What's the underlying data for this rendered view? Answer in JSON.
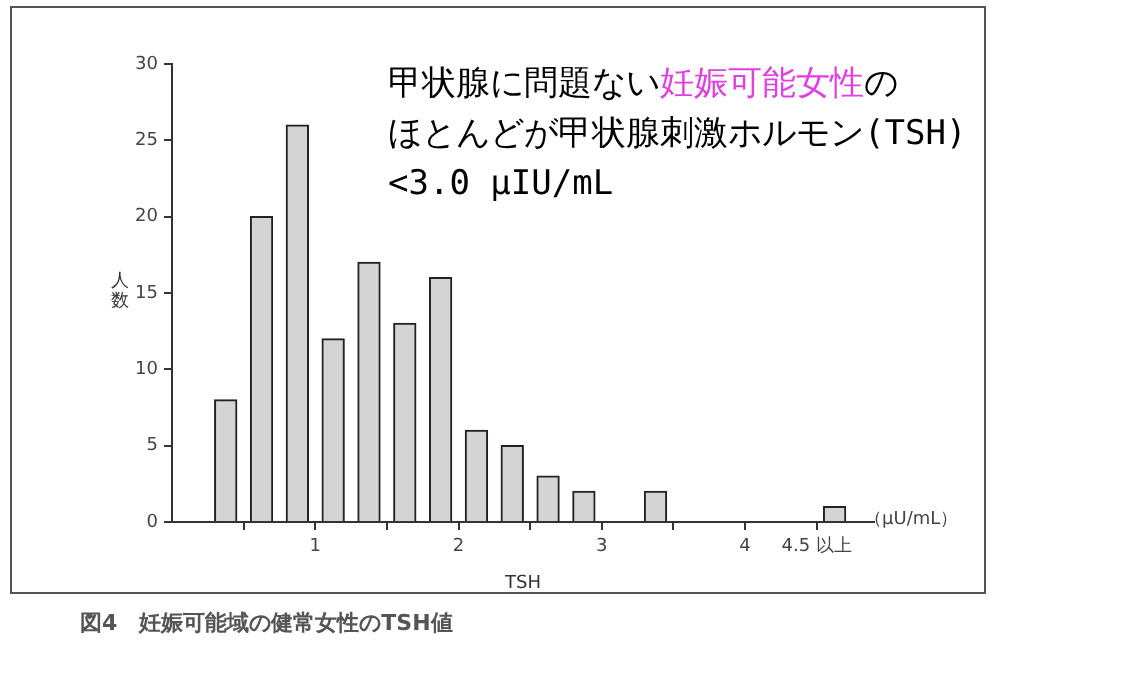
{
  "chart_data": {
    "type": "bar",
    "title": "図4　妊娠可能域の健常女性のTSH値",
    "xlabel": "TSH",
    "ylabel": "人数",
    "x": [
      0.375,
      0.625,
      0.875,
      1.125,
      1.375,
      1.625,
      1.875,
      2.125,
      2.375,
      2.625,
      2.875,
      3.375,
      4.625
    ],
    "values": [
      8,
      20,
      26,
      12,
      17,
      13,
      16,
      6,
      5,
      3,
      2,
      2,
      1
    ],
    "color": "#d4d4d4",
    "xlim": [
      0,
      4.9
    ],
    "xticks": [
      {
        "value": 0.5,
        "label": null
      },
      1,
      {
        "value": 1.5,
        "label": null
      },
      2,
      {
        "value": 2.5,
        "label": null
      },
      3,
      {
        "value": 3.5,
        "label": null
      },
      4,
      {
        "value": 4.5,
        "label": "4.5 以上"
      }
    ],
    "ylim": [
      0,
      30
    ],
    "yticks": [
      0,
      5,
      10,
      15,
      20,
      25,
      30
    ],
    "grid": false,
    "legend": false,
    "annotations": [
      "甲状腺に問題ない",
      "妊娠可能女性",
      "の",
      "ほとんどが甲状腺刺激ホルモン(TSH)",
      "<3.0 μIU/mL",
      "（μU/mL）"
    ]
  }
}
